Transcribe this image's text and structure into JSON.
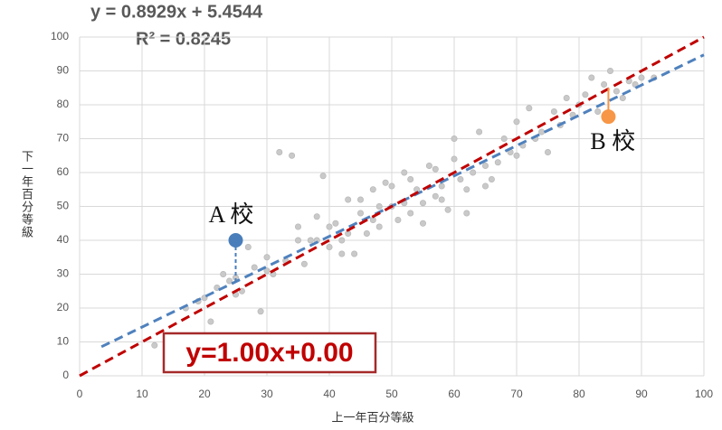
{
  "chart_data": {
    "type": "scatter",
    "equation": "y = 0.8929x + 5.4544",
    "r_squared": "R² = 0.8245",
    "x_label": "上一年百分等級",
    "y_label": "下一年百分等級",
    "identity_label": "y=1.00x+0.00",
    "xlim": [
      0,
      100
    ],
    "ylim": [
      0,
      100
    ],
    "xticks": [
      0,
      10,
      20,
      30,
      40,
      50,
      60,
      70,
      80,
      90,
      100
    ],
    "yticks": [
      0,
      10,
      20,
      30,
      40,
      50,
      60,
      70,
      80,
      90,
      100
    ],
    "grid": true,
    "series": [
      {
        "style": "points",
        "color": "#c9c9c9",
        "x": [
          12,
          15,
          17,
          19,
          20,
          21,
          22,
          23,
          24,
          25,
          26,
          27,
          28,
          29,
          30,
          31,
          32,
          33,
          34,
          35,
          36,
          37,
          38,
          39,
          40,
          41,
          42,
          43,
          44,
          45,
          46,
          47,
          48,
          49,
          50,
          51,
          52,
          53,
          54,
          55,
          56,
          57,
          58,
          59,
          60,
          61,
          62,
          63,
          64,
          65,
          66,
          67,
          68,
          69,
          70,
          71,
          72,
          73,
          74,
          75,
          76,
          77,
          78,
          79,
          80,
          81,
          82,
          83,
          84,
          85,
          86,
          87,
          88,
          89,
          90,
          92,
          60,
          62,
          57,
          45,
          40,
          35,
          30,
          25,
          50,
          55,
          65,
          70,
          43,
          48,
          52,
          38,
          42,
          47,
          53,
          58
        ],
        "y": [
          9,
          11,
          20,
          22,
          23,
          16,
          26,
          30,
          28,
          24,
          25,
          38,
          32,
          19,
          35,
          30,
          66,
          34,
          65,
          44,
          33,
          40,
          47,
          59,
          38,
          45,
          40,
          52,
          36,
          48,
          42,
          55,
          44,
          57,
          50,
          46,
          60,
          48,
          55,
          51,
          62,
          53,
          56,
          49,
          64,
          58,
          55,
          60,
          72,
          62,
          58,
          63,
          70,
          66,
          75,
          68,
          79,
          70,
          72,
          66,
          78,
          74,
          82,
          77,
          80,
          83,
          88,
          78,
          86,
          90,
          84,
          82,
          87,
          86,
          88,
          88,
          70,
          48,
          61,
          52,
          44,
          40,
          31,
          29,
          56,
          45,
          56,
          65,
          42,
          50,
          51,
          40,
          36,
          46,
          58,
          52
        ]
      },
      {
        "style": "dashed-line",
        "color": "#4f81bd",
        "x": [
          3.5,
          100
        ],
        "y": [
          8.58,
          94.74
        ]
      },
      {
        "style": "dashed-line",
        "color": "#c00000",
        "x": [
          0,
          100
        ],
        "y": [
          0,
          100
        ]
      }
    ],
    "annotations": [
      {
        "text": "A 校",
        "x": 25,
        "y": 40,
        "line_to": 27.8,
        "color": "#4a7ebb",
        "line_style": "dashed"
      },
      {
        "text": "B 校",
        "x": 84.7,
        "y": 76.5,
        "line_to": 85,
        "color": "#f79646",
        "line_style": "solid"
      }
    ]
  }
}
